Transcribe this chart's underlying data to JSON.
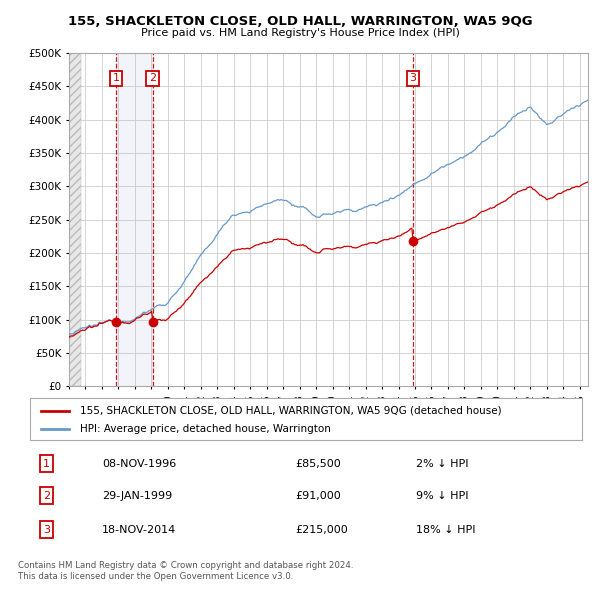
{
  "title": "155, SHACKLETON CLOSE, OLD HALL, WARRINGTON, WA5 9QG",
  "subtitle": "Price paid vs. HM Land Registry's House Price Index (HPI)",
  "ylabel_ticks": [
    "£0",
    "£50K",
    "£100K",
    "£150K",
    "£200K",
    "£250K",
    "£300K",
    "£350K",
    "£400K",
    "£450K",
    "£500K"
  ],
  "ytick_values": [
    0,
    50000,
    100000,
    150000,
    200000,
    250000,
    300000,
    350000,
    400000,
    450000,
    500000
  ],
  "xlim_start": 1994.0,
  "xlim_end": 2025.5,
  "ylim_min": 0,
  "ylim_max": 500000,
  "transactions": [
    {
      "label": "1",
      "date": "08-NOV-1996",
      "year": 1996.86,
      "price": 85500,
      "pct": "2%",
      "dir": "↓"
    },
    {
      "label": "2",
      "date": "29-JAN-1999",
      "year": 1999.08,
      "price": 91000,
      "pct": "9%",
      "dir": "↓"
    },
    {
      "label": "3",
      "date": "18-NOV-2014",
      "year": 2014.88,
      "price": 215000,
      "pct": "18%",
      "dir": "↓"
    }
  ],
  "legend_property_label": "155, SHACKLETON CLOSE, OLD HALL, WARRINGTON, WA5 9QG (detached house)",
  "legend_hpi_label": "HPI: Average price, detached house, Warrington",
  "footer_line1": "Contains HM Land Registry data © Crown copyright and database right 2024.",
  "footer_line2": "This data is licensed under the Open Government Licence v3.0.",
  "property_color": "#cc0000",
  "hpi_color": "#6699cc",
  "grid_color": "#cccccc",
  "bg_color": "#ffffff"
}
